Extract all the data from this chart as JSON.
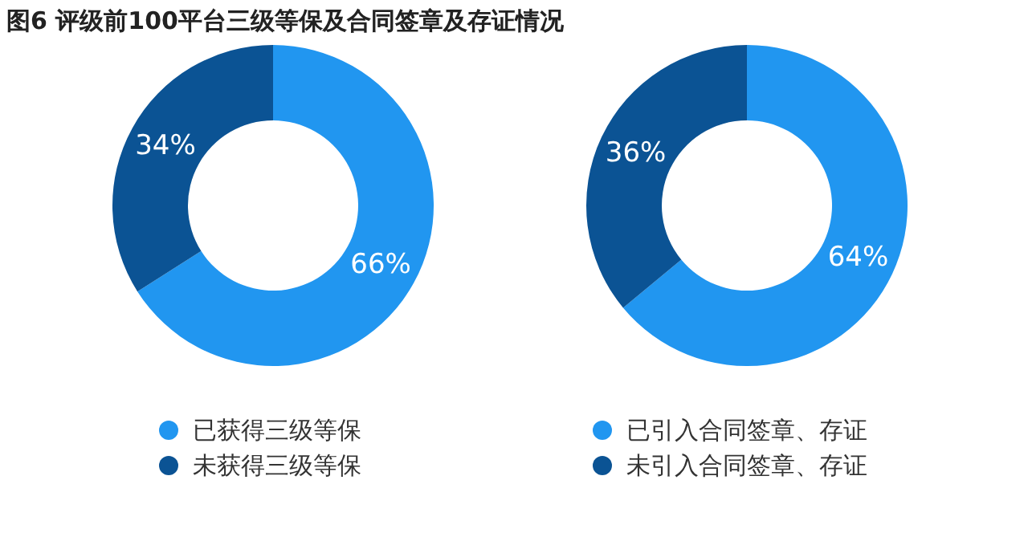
{
  "chart_data": [
    {
      "type": "donut",
      "title": "图6 评级前100平台三级等保及合同签章及存证情况",
      "categories": [
        "已获得三级等保",
        "未获得三级等保"
      ],
      "values": [
        66,
        34
      ],
      "value_labels": [
        "66%",
        "34%"
      ],
      "colors": [
        "#2196f0",
        "#0b5394"
      ],
      "legend": "bottom"
    },
    {
      "type": "donut",
      "categories": [
        "已引入合同签章、存证",
        "未引入合同签章、存证"
      ],
      "values": [
        64,
        36
      ],
      "value_labels": [
        "64%",
        "36%"
      ],
      "colors": [
        "#2196f0",
        "#0b5394"
      ],
      "legend": "bottom"
    }
  ]
}
